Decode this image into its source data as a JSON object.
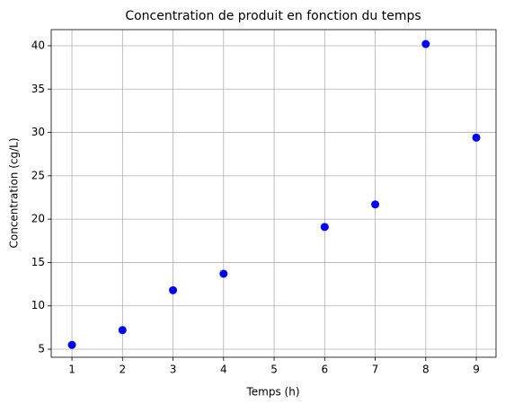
{
  "chart_data": {
    "type": "scatter",
    "title": "Concentration de produit en fonction du temps",
    "xlabel": "Temps (h)",
    "ylabel": "Concentration (cg/L)",
    "x": [
      1,
      2,
      3,
      4,
      6,
      7,
      8,
      9
    ],
    "values": [
      5.5,
      7.2,
      11.8,
      13.7,
      19.1,
      21.7,
      40.2,
      29.4
    ],
    "color": "#0000ff",
    "xlim": [
      0.59,
      9.39
    ],
    "ylim": [
      4.07,
      41.86
    ],
    "xticks": [
      1,
      2,
      3,
      4,
      5,
      6,
      7,
      8,
      9
    ],
    "yticks": [
      5,
      10,
      15,
      20,
      25,
      30,
      35,
      40
    ],
    "grid": true
  }
}
